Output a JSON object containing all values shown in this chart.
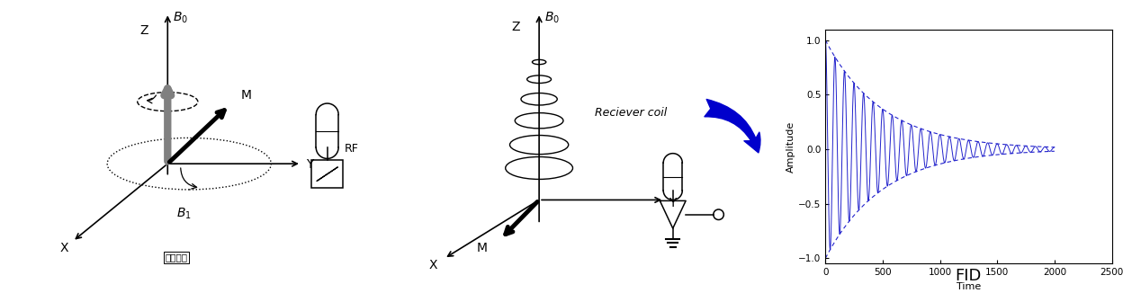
{
  "fig_width": 12.48,
  "fig_height": 3.26,
  "bg_color": "#ffffff",
  "plot_color": "#2222cc",
  "fid_decay": 500,
  "fid_freq": 0.012,
  "fid_tmax": 2000,
  "fid_yticks": [
    -1,
    -0.5,
    0,
    0.5,
    1
  ],
  "fid_xticks": [
    0,
    500,
    1000,
    1500,
    2000,
    2500
  ],
  "fid_xlabel": "Time",
  "fid_ylabel": "Amplitude",
  "fid_title": "FID",
  "arrow_color": "#0000cc"
}
